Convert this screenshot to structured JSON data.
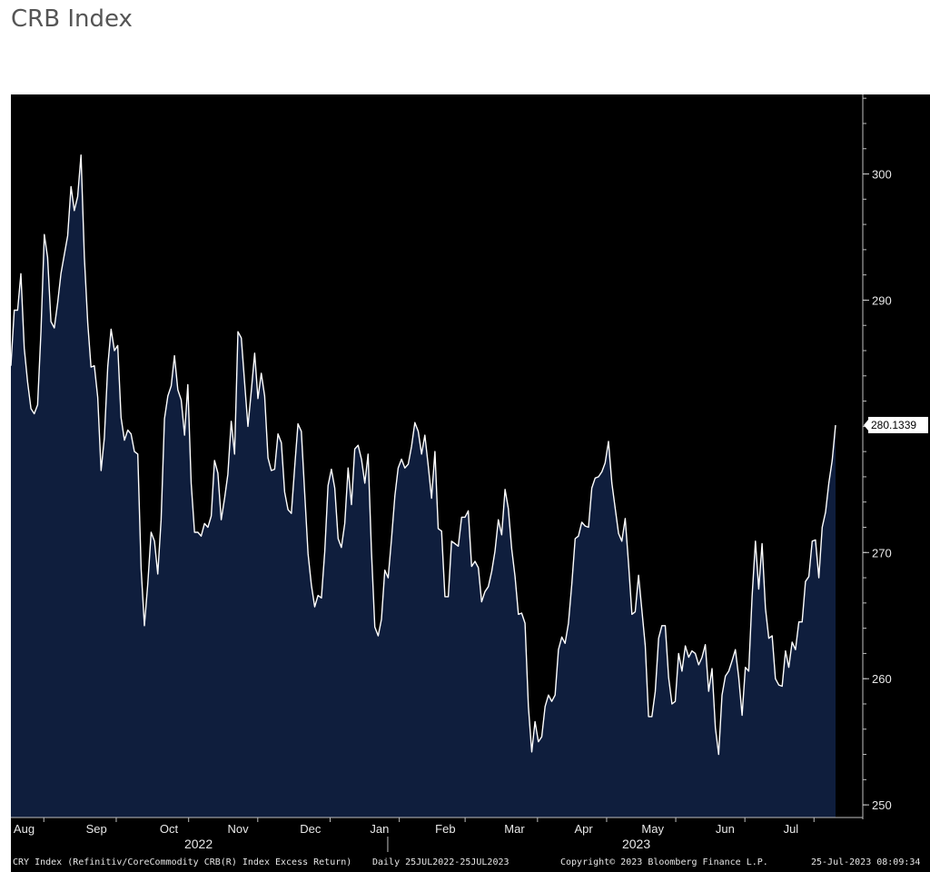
{
  "title": "CRB Index",
  "chart_data": {
    "type": "area",
    "series": [
      {
        "last_value_label": "280.1339",
        "values": [
          284.8,
          289.2,
          289.2,
          292.1,
          286.2,
          283.5,
          281.4,
          281,
          281.7,
          287.5,
          295.2,
          293.4,
          288.3,
          287.8,
          289.8,
          292.1,
          293.6,
          295.1,
          299,
          297.1,
          298.2,
          301.5,
          293.4,
          288.2,
          284.7,
          284.8,
          282.3,
          276.5,
          279.1,
          284.7,
          287.7,
          286,
          286.4,
          280.7,
          278.9,
          279.7,
          279.4,
          278,
          277.8,
          268.7,
          264.2,
          267.5,
          271.6,
          270.9,
          268.3,
          272.6,
          280.6,
          282.4,
          283.2,
          285.6,
          282.9,
          282.1,
          279.3,
          283.3,
          275.5,
          271.6,
          271.6,
          271.3,
          272.3,
          272,
          272.9,
          277.3,
          276.3,
          272.6,
          274.3,
          276.2,
          280.4,
          277.8,
          287.5,
          287,
          283.5,
          280,
          282.8,
          285.8,
          282.2,
          284.2,
          282.4,
          277.5,
          276.5,
          276.6,
          279.4,
          278.7,
          274.8,
          273.4,
          273.1,
          276.8,
          280.2,
          279.6,
          274.7,
          269.9,
          267.4,
          265.7,
          266.6,
          266.4,
          270.1,
          275.3,
          276.6,
          275.1,
          271.1,
          270.4,
          272.3,
          276.7,
          273.8,
          278.2,
          278.5,
          277.4,
          275.5,
          277.8,
          270.1,
          264.1,
          263.4,
          264.7,
          268.6,
          268,
          271.1,
          274.5,
          276.7,
          277.4,
          276.7,
          277,
          278.4,
          280.3,
          279.6,
          277.8,
          279.3,
          276.9,
          274.3,
          278,
          271.9,
          271.7,
          266.5,
          266.5,
          270.9,
          270.7,
          270.5,
          272.8,
          272.8,
          273.3,
          268.9,
          269.3,
          268.8,
          266.1,
          266.9,
          267.3,
          268.5,
          270.1,
          272.6,
          271.4,
          275,
          273.5,
          270.3,
          268.1,
          265.1,
          265.2,
          264.4,
          257.8,
          254.2,
          256.6,
          255,
          255.4,
          257.8,
          258.7,
          258.2,
          258.7,
          262.3,
          263.3,
          262.8,
          264.4,
          267.5,
          271.1,
          271.3,
          272.4,
          272.1,
          272,
          275.1,
          275.9,
          276,
          276.4,
          277.1,
          278.8,
          275.5,
          273.5,
          271.5,
          270.9,
          272.7,
          269.1,
          265.1,
          265.3,
          268.2,
          265.4,
          262.6,
          257,
          257,
          259,
          263.2,
          264.2,
          264.2,
          260.1,
          258,
          258.2,
          262,
          260.6,
          262.6,
          261.7,
          262.2,
          262,
          261.1,
          261.7,
          262.7,
          259,
          260.8,
          256.1,
          254,
          258.7,
          260.2,
          260.6,
          261.4,
          262.3,
          260.1,
          257.1,
          260.9,
          260.6,
          266.5,
          270.9,
          267.1,
          270.7,
          265.6,
          263.2,
          263.4,
          260,
          259.5,
          259.4,
          262.2,
          260.9,
          262.9,
          262.3,
          264.5,
          264.5,
          267.7,
          268.1,
          270.9,
          271,
          268,
          272,
          273.2,
          275.5,
          277.3,
          280.1
        ]
      }
    ],
    "x_ticks": [
      {
        "label": "Aug",
        "x": 4
      },
      {
        "label": "Sep",
        "x": 26
      },
      {
        "label": "Oct",
        "x": 48
      },
      {
        "label": "Nov",
        "x": 69
      },
      {
        "label": "Dec",
        "x": 91
      },
      {
        "label": "Jan",
        "x": 112
      },
      {
        "label": "Feb",
        "x": 132
      },
      {
        "label": "Mar",
        "x": 153
      },
      {
        "label": "Apr",
        "x": 174
      },
      {
        "label": "May",
        "x": 195
      },
      {
        "label": "Jun",
        "x": 217
      },
      {
        "label": "Jul",
        "x": 237
      }
    ],
    "x_tick_marks": [
      10,
      32,
      54,
      75,
      97,
      118,
      138,
      160,
      181,
      202,
      223,
      244
    ],
    "year_labels": [
      {
        "label": "2022",
        "x": 57
      },
      {
        "label": "2023",
        "x": 190
      }
    ],
    "year_divider_x": 114.5,
    "y_ticks": [
      250,
      260,
      270,
      280,
      290,
      300
    ],
    "ylim": [
      249,
      306.3
    ],
    "xlim": [
      0,
      258
    ],
    "grid": false,
    "legend": "none",
    "colors": {
      "background": "#000000",
      "fill": "#0f1e3d",
      "line": "#ffffff",
      "text": "#e8e8e8",
      "price_tag_bg": "#ffffff",
      "price_tag_text": "#000000"
    }
  },
  "footer": {
    "ticker": "CRY Index (Refinitiv/CoreCommodity CRB(R) Index Excess Return)",
    "period": "Daily 25JUL2022-25JUL2023",
    "copyright": "Copyright© 2023 Bloomberg Finance L.P.",
    "timestamp": "25-Jul-2023 08:09:34"
  }
}
